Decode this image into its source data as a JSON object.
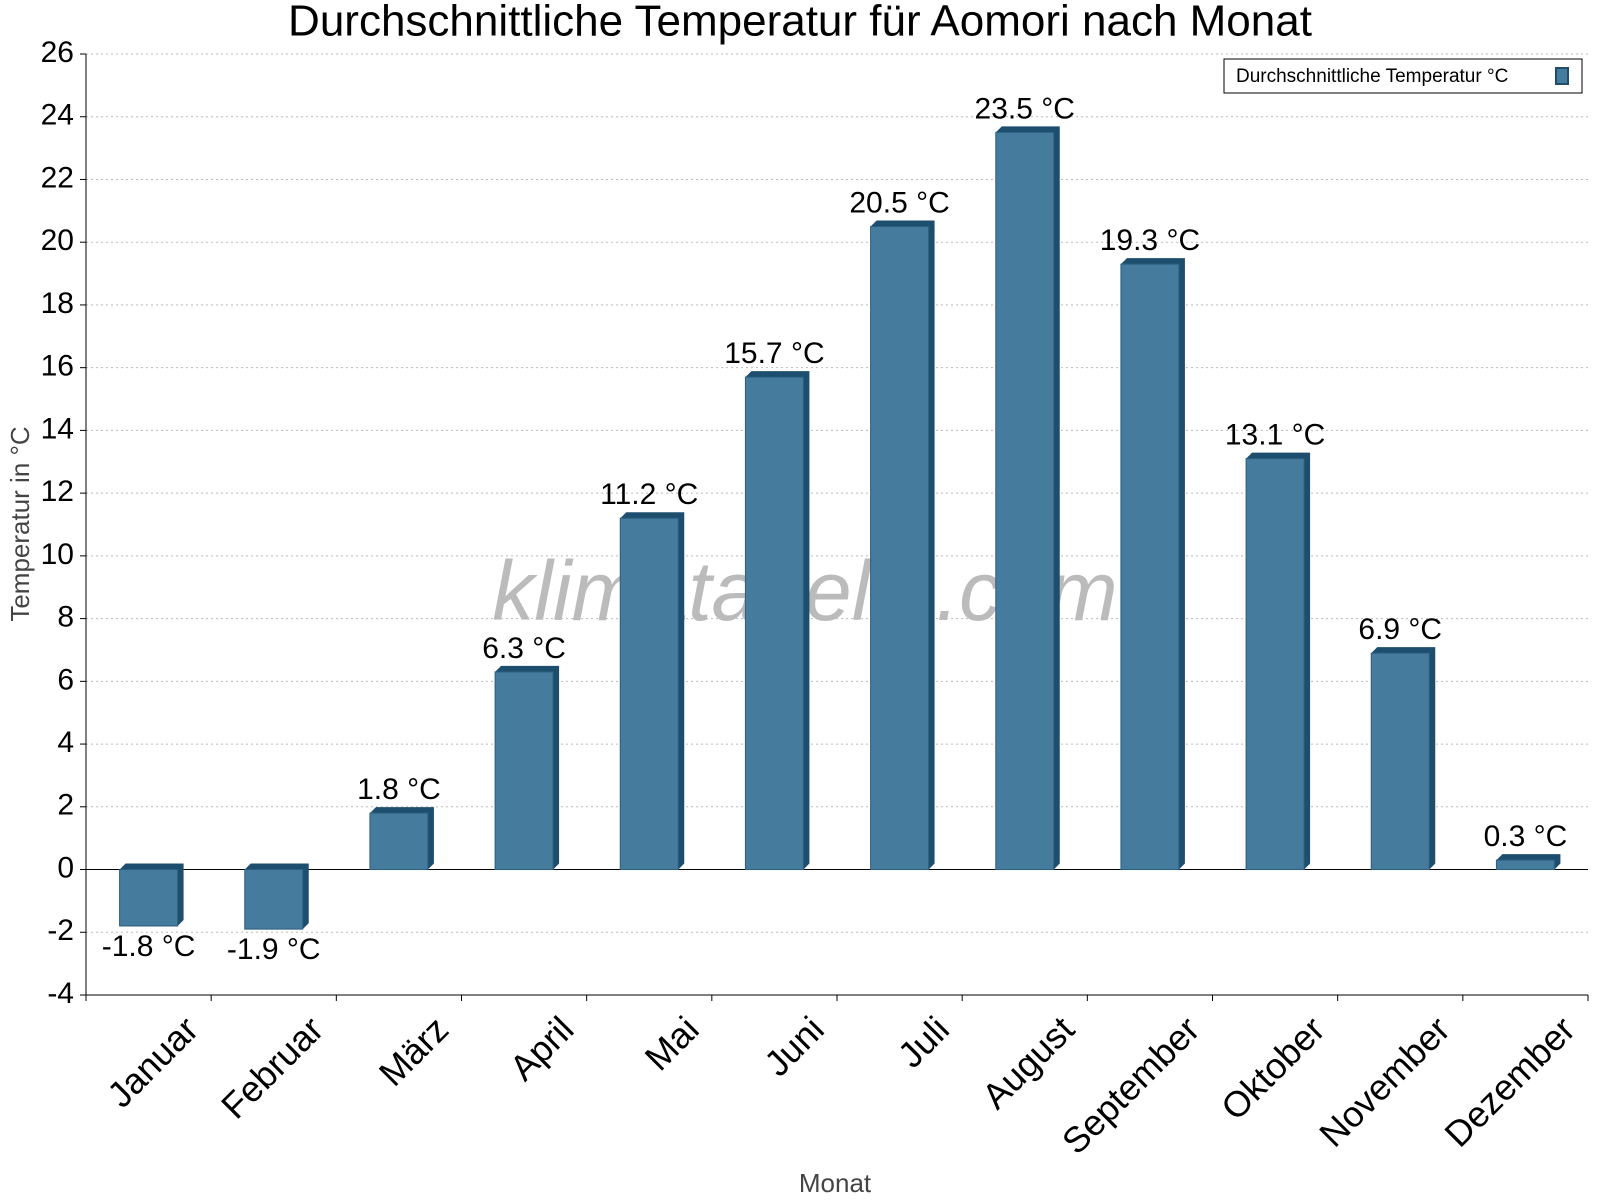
{
  "chart_data": {
    "type": "bar",
    "title": "Durchschnittliche Temperatur für Aomori nach Monat",
    "x_label": "Monat",
    "y_label": "Temperatur in °C",
    "watermark": "klimatabelle.com",
    "categories": [
      "Januar",
      "Februar",
      "März",
      "April",
      "Mai",
      "Juni",
      "Juli",
      "August",
      "September",
      "Oktober",
      "November",
      "Dezember"
    ],
    "series": [
      {
        "name": "Durchschnittliche Temperatur °C",
        "color": "#457b9d",
        "values": [
          -1.8,
          -1.9,
          1.8,
          6.3,
          11.2,
          15.7,
          20.5,
          23.5,
          19.3,
          13.1,
          6.9,
          0.3
        ],
        "value_labels": [
          "-1.8 °C",
          "-1.9 °C",
          "1.8 °C",
          "6.3 °C",
          "11.2 °C",
          "15.7 °C",
          "20.5 °C",
          "23.5 °C",
          "19.3 °C",
          "13.1 °C",
          "6.9 °C",
          "0.3 °C"
        ]
      }
    ],
    "ylim": [
      -4,
      26
    ],
    "yticks": [
      -4,
      -2,
      0,
      2,
      4,
      6,
      8,
      10,
      12,
      14,
      16,
      18,
      20,
      22,
      24,
      26
    ],
    "grid": true,
    "legend": "top-right"
  }
}
